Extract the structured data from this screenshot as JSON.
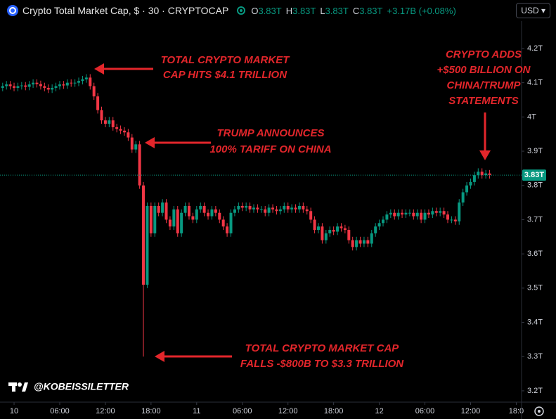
{
  "header": {
    "title": "Crypto Total Market Cap, $ · 30 · CRYPTOCAP",
    "open_key": "O",
    "open": "3.83T",
    "high_key": "H",
    "high": "3.83T",
    "low_key": "L",
    "low": "3.83T",
    "close_key": "C",
    "close": "3.83T",
    "change": "+3.17B (+0.08%)",
    "currency": "USD"
  },
  "chart_data": {
    "type": "candlestick",
    "up_color": "#089981",
    "down_color": "#f23645",
    "xlim": [
      -1.85,
      66.7
    ],
    "ylim": [
      3.167,
      4.28
    ],
    "xticks": [
      {
        "value": 0,
        "label": "10"
      },
      {
        "value": 6,
        "label": "06:00"
      },
      {
        "value": 12,
        "label": "12:00"
      },
      {
        "value": 18,
        "label": "18:00"
      },
      {
        "value": 24,
        "label": "11"
      },
      {
        "value": 30,
        "label": "06:00"
      },
      {
        "value": 36,
        "label": "12:00"
      },
      {
        "value": 42,
        "label": "18:00"
      },
      {
        "value": 48,
        "label": "12"
      },
      {
        "value": 54,
        "label": "06:00"
      },
      {
        "value": 60,
        "label": "12:00"
      },
      {
        "value": 66,
        "label": "18:0"
      }
    ],
    "yticks": [
      {
        "value": 3.2,
        "label": "3.2T"
      },
      {
        "value": 3.3,
        "label": "3.3T"
      },
      {
        "value": 3.4,
        "label": "3.4T"
      },
      {
        "value": 3.5,
        "label": "3.5T"
      },
      {
        "value": 3.6,
        "label": "3.6T"
      },
      {
        "value": 3.7,
        "label": "3.7T"
      },
      {
        "value": 3.8,
        "label": "3.8T"
      },
      {
        "value": 3.9,
        "label": "3.9T"
      },
      {
        "value": 4,
        "label": "4T"
      },
      {
        "value": 4.1,
        "label": "4.1T"
      },
      {
        "value": 4.2,
        "label": "4.2T"
      }
    ],
    "price_label": "3.83T",
    "x": [
      -1.5,
      -1,
      -0.5,
      0,
      0.5,
      1,
      1.5,
      2,
      2.5,
      3,
      3.5,
      4,
      4.5,
      5,
      5.5,
      6,
      6.5,
      7,
      7.5,
      8,
      8.5,
      9,
      9.5,
      10,
      10.5,
      11,
      11.5,
      12,
      12.5,
      13,
      13.5,
      14,
      14.5,
      15,
      15.5,
      16,
      16.5,
      17,
      17.5,
      18,
      18.5,
      19,
      19.5,
      20,
      20.5,
      21,
      21.5,
      22,
      22.5,
      23,
      23.5,
      24,
      24.5,
      25,
      25.5,
      26,
      26.5,
      27,
      27.5,
      28,
      28.5,
      29,
      29.5,
      30,
      30.5,
      31,
      31.5,
      32,
      32.5,
      33,
      33.5,
      34,
      34.5,
      35,
      35.5,
      36,
      36.5,
      37,
      37.5,
      38,
      38.5,
      39,
      39.5,
      40,
      40.5,
      41,
      41.5,
      42,
      42.5,
      43,
      43.5,
      44,
      44.5,
      45,
      45.5,
      46,
      46.5,
      47,
      47.5,
      48,
      48.5,
      49,
      49.5,
      50,
      50.5,
      51,
      51.5,
      52,
      52.5,
      53,
      53.5,
      54,
      54.5,
      55,
      55.5,
      56,
      56.5,
      57,
      57.5,
      58,
      58.5,
      59,
      59.5,
      60,
      60.5,
      61,
      61.5,
      62,
      62.5
    ],
    "open": [
      4.085,
      4.09,
      4.095,
      4.09,
      4.085,
      4.09,
      4.092,
      4.088,
      4.095,
      4.1,
      4.096,
      4.09,
      4.085,
      4.08,
      4.085,
      4.09,
      4.095,
      4.092,
      4.1,
      4.098,
      4.1,
      4.105,
      4.11,
      4.115,
      4.09,
      4.06,
      4.02,
      3.99,
      3.98,
      3.99,
      3.97,
      3.965,
      3.96,
      3.955,
      3.94,
      3.905,
      3.92,
      3.8,
      3.51,
      3.74,
      3.66,
      3.74,
      3.72,
      3.75,
      3.7,
      3.68,
      3.73,
      3.66,
      3.72,
      3.74,
      3.71,
      3.7,
      3.73,
      3.74,
      3.72,
      3.71,
      3.73,
      3.72,
      3.7,
      3.68,
      3.66,
      3.72,
      3.73,
      3.74,
      3.735,
      3.74,
      3.73,
      3.735,
      3.73,
      3.73,
      3.72,
      3.735,
      3.73,
      3.725,
      3.73,
      3.74,
      3.73,
      3.735,
      3.73,
      3.74,
      3.73,
      3.725,
      3.7,
      3.67,
      3.68,
      3.64,
      3.66,
      3.67,
      3.665,
      3.68,
      3.675,
      3.67,
      3.64,
      3.62,
      3.64,
      3.63,
      3.64,
      3.63,
      3.66,
      3.68,
      3.69,
      3.7,
      3.715,
      3.72,
      3.71,
      3.72,
      3.715,
      3.72,
      3.72,
      3.71,
      3.72,
      3.7,
      3.72,
      3.715,
      3.725,
      3.72,
      3.725,
      3.715,
      3.7,
      3.7,
      3.695,
      3.75,
      3.78,
      3.8,
      3.81,
      3.83,
      3.84,
      3.83,
      3.835
    ],
    "high": [
      4.1,
      4.105,
      4.105,
      4.1,
      4.1,
      4.102,
      4.102,
      4.105,
      4.11,
      4.11,
      4.106,
      4.1,
      4.095,
      4.095,
      4.1,
      4.105,
      4.105,
      4.11,
      4.11,
      4.11,
      4.115,
      4.12,
      4.125,
      4.125,
      4.1,
      4.07,
      4.03,
      4.0,
      4.0,
      4.0,
      3.98,
      3.975,
      3.97,
      3.965,
      3.95,
      3.93,
      3.93,
      3.81,
      3.75,
      3.75,
      3.75,
      3.75,
      3.76,
      3.76,
      3.71,
      3.74,
      3.74,
      3.73,
      3.75,
      3.75,
      3.72,
      3.74,
      3.75,
      3.75,
      3.73,
      3.74,
      3.74,
      3.73,
      3.71,
      3.69,
      3.73,
      3.74,
      3.75,
      3.75,
      3.75,
      3.75,
      3.745,
      3.745,
      3.74,
      3.74,
      3.745,
      3.745,
      3.74,
      3.74,
      3.75,
      3.75,
      3.745,
      3.745,
      3.75,
      3.75,
      3.74,
      3.735,
      3.71,
      3.69,
      3.69,
      3.67,
      3.68,
      3.68,
      3.69,
      3.69,
      3.685,
      3.68,
      3.65,
      3.65,
      3.65,
      3.65,
      3.65,
      3.67,
      3.69,
      3.7,
      3.71,
      3.725,
      3.73,
      3.73,
      3.73,
      3.73,
      3.73,
      3.73,
      3.73,
      3.73,
      3.73,
      3.73,
      3.73,
      3.735,
      3.735,
      3.735,
      3.735,
      3.725,
      3.71,
      3.71,
      3.76,
      3.79,
      3.81,
      3.82,
      3.84,
      3.85,
      3.85,
      3.845,
      3.845
    ],
    "low": [
      4.075,
      4.08,
      4.08,
      4.075,
      4.075,
      4.08,
      4.078,
      4.078,
      4.085,
      4.086,
      4.08,
      4.075,
      4.07,
      4.07,
      4.075,
      4.08,
      4.082,
      4.082,
      4.088,
      4.088,
      4.09,
      4.095,
      4.1,
      4.08,
      4.05,
      4.01,
      3.98,
      3.97,
      3.97,
      3.96,
      3.955,
      3.95,
      3.945,
      3.93,
      3.895,
      3.895,
      3.79,
      3.3,
      3.5,
      3.65,
      3.65,
      3.71,
      3.71,
      3.69,
      3.67,
      3.67,
      3.65,
      3.65,
      3.71,
      3.7,
      3.69,
      3.69,
      3.72,
      3.71,
      3.7,
      3.7,
      3.71,
      3.69,
      3.67,
      3.65,
      3.65,
      3.71,
      3.72,
      3.725,
      3.725,
      3.72,
      3.72,
      3.72,
      3.72,
      3.71,
      3.71,
      3.72,
      3.715,
      3.715,
      3.72,
      3.72,
      3.72,
      3.72,
      3.72,
      3.72,
      3.715,
      3.69,
      3.66,
      3.66,
      3.63,
      3.63,
      3.65,
      3.655,
      3.655,
      3.665,
      3.66,
      3.63,
      3.61,
      3.61,
      3.62,
      3.62,
      3.62,
      3.62,
      3.65,
      3.67,
      3.68,
      3.69,
      3.705,
      3.7,
      3.7,
      3.705,
      3.705,
      3.71,
      3.7,
      3.7,
      3.69,
      3.69,
      3.705,
      3.705,
      3.71,
      3.71,
      3.705,
      3.69,
      3.69,
      3.685,
      3.685,
      3.74,
      3.77,
      3.79,
      3.8,
      3.82,
      3.82,
      3.82,
      3.82
    ],
    "close": [
      4.09,
      4.095,
      4.09,
      4.085,
      4.09,
      4.092,
      4.088,
      4.095,
      4.1,
      4.096,
      4.09,
      4.085,
      4.08,
      4.085,
      4.09,
      4.095,
      4.092,
      4.1,
      4.098,
      4.1,
      4.105,
      4.11,
      4.115,
      4.09,
      4.06,
      4.02,
      3.99,
      3.98,
      3.99,
      3.97,
      3.965,
      3.96,
      3.955,
      3.94,
      3.905,
      3.92,
      3.8,
      3.51,
      3.74,
      3.66,
      3.74,
      3.72,
      3.75,
      3.7,
      3.68,
      3.73,
      3.66,
      3.72,
      3.74,
      3.71,
      3.7,
      3.73,
      3.74,
      3.72,
      3.71,
      3.73,
      3.72,
      3.7,
      3.68,
      3.66,
      3.72,
      3.73,
      3.74,
      3.735,
      3.74,
      3.73,
      3.735,
      3.73,
      3.73,
      3.72,
      3.735,
      3.73,
      3.725,
      3.73,
      3.74,
      3.73,
      3.735,
      3.73,
      3.74,
      3.73,
      3.725,
      3.7,
      3.67,
      3.68,
      3.64,
      3.66,
      3.67,
      3.665,
      3.68,
      3.675,
      3.67,
      3.64,
      3.62,
      3.64,
      3.63,
      3.64,
      3.63,
      3.66,
      3.68,
      3.69,
      3.7,
      3.715,
      3.72,
      3.71,
      3.72,
      3.715,
      3.72,
      3.72,
      3.71,
      3.72,
      3.7,
      3.72,
      3.715,
      3.725,
      3.72,
      3.725,
      3.715,
      3.7,
      3.7,
      3.695,
      3.75,
      3.78,
      3.8,
      3.81,
      3.83,
      3.84,
      3.83,
      3.835,
      3.83
    ],
    "annotations": [
      {
        "lines": [
          "TOTAL CRYPTO MARKET",
          "CAP HITS $4.1 TRILLION"
        ]
      },
      {
        "lines": [
          "TRUMP ANNOUNCES",
          "100% TARIFF ON CHINA"
        ]
      },
      {
        "lines": [
          "CRYPTO ADDS",
          "+$500 BILLION ON",
          "CHINA/TRUMP",
          "STATEMENTS"
        ]
      },
      {
        "lines": [
          "TOTAL CRYPTO MARKET CAP",
          "FALLS -$800B TO $3.3 TRILLION"
        ]
      }
    ],
    "watermark": "@KOBEISSILETTER"
  }
}
